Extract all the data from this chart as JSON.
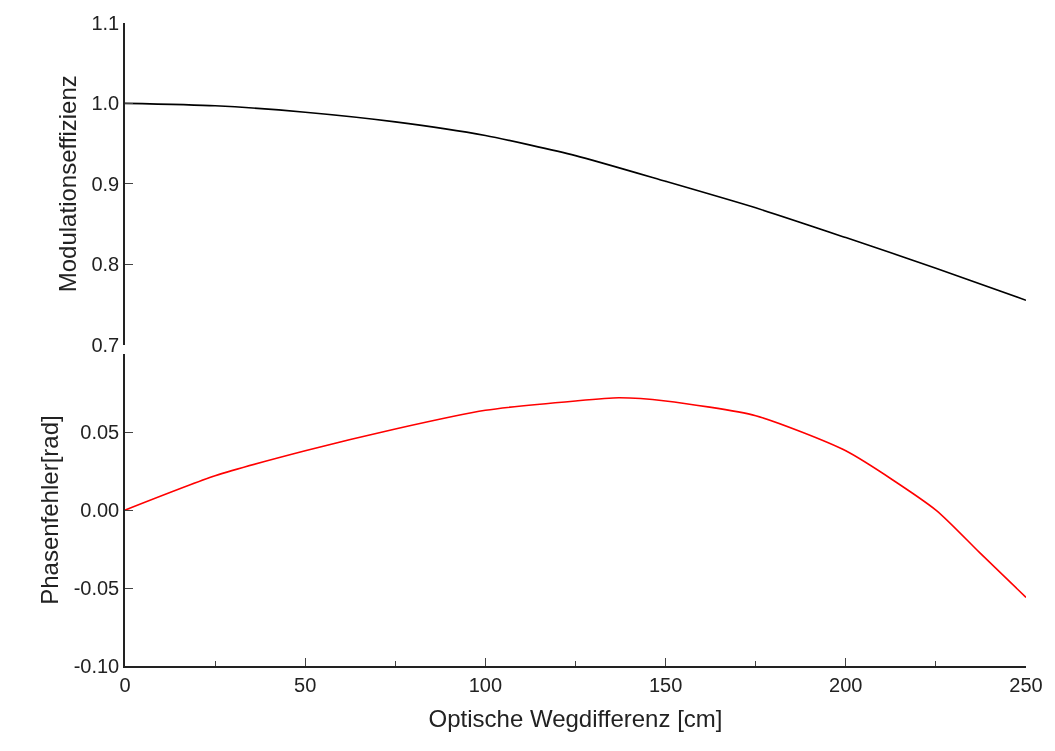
{
  "chart_data": [
    {
      "type": "line",
      "ylabel": "Modulationseffizienz",
      "x": [
        0,
        25,
        50,
        75,
        100,
        125,
        150,
        175,
        200,
        225,
        250
      ],
      "series": [
        {
          "color": "#000000",
          "values": [
            1.0,
            0.997,
            0.989,
            0.977,
            0.96,
            0.935,
            0.903,
            0.87,
            0.833,
            0.795,
            0.755
          ]
        }
      ],
      "xlim": [
        0,
        250
      ],
      "ylim": [
        0.7,
        1.1
      ],
      "yticks": [
        {
          "value": 0.7,
          "label": "0.7"
        },
        {
          "value": 0.8,
          "label": "0.8"
        },
        {
          "value": 0.9,
          "label": "0.9"
        },
        {
          "value": 1.0,
          "label": "1.0"
        },
        {
          "value": 1.1,
          "label": "1.1"
        }
      ],
      "tick_labels": "y",
      "marker": "none",
      "line_style": "solid"
    },
    {
      "type": "line",
      "xlabel": "Optische Wegdifferenz [cm]",
      "ylabel": "Phasenfehler[rad]",
      "x": [
        0,
        25,
        50,
        75,
        100,
        125,
        137,
        150,
        175,
        200,
        225,
        237,
        250
      ],
      "series": [
        {
          "color": "#ff0000",
          "values": [
            0.0,
            0.022,
            0.038,
            0.052,
            0.064,
            0.07,
            0.072,
            0.07,
            0.0605,
            0.038,
            0.0,
            -0.027,
            -0.056
          ]
        }
      ],
      "xlim": [
        0,
        250
      ],
      "xticks": [
        0,
        50,
        100,
        150,
        200,
        250
      ],
      "ylim": [
        -0.1,
        0.1
      ],
      "yticks": [
        {
          "value": -0.1,
          "label": "-0.10"
        },
        {
          "value": -0.05,
          "label": "-0.05"
        },
        {
          "value": 0.0,
          "label": "0.00"
        },
        {
          "value": 0.05,
          "label": "0.05"
        }
      ],
      "marker": "none",
      "line_style": "solid"
    }
  ]
}
